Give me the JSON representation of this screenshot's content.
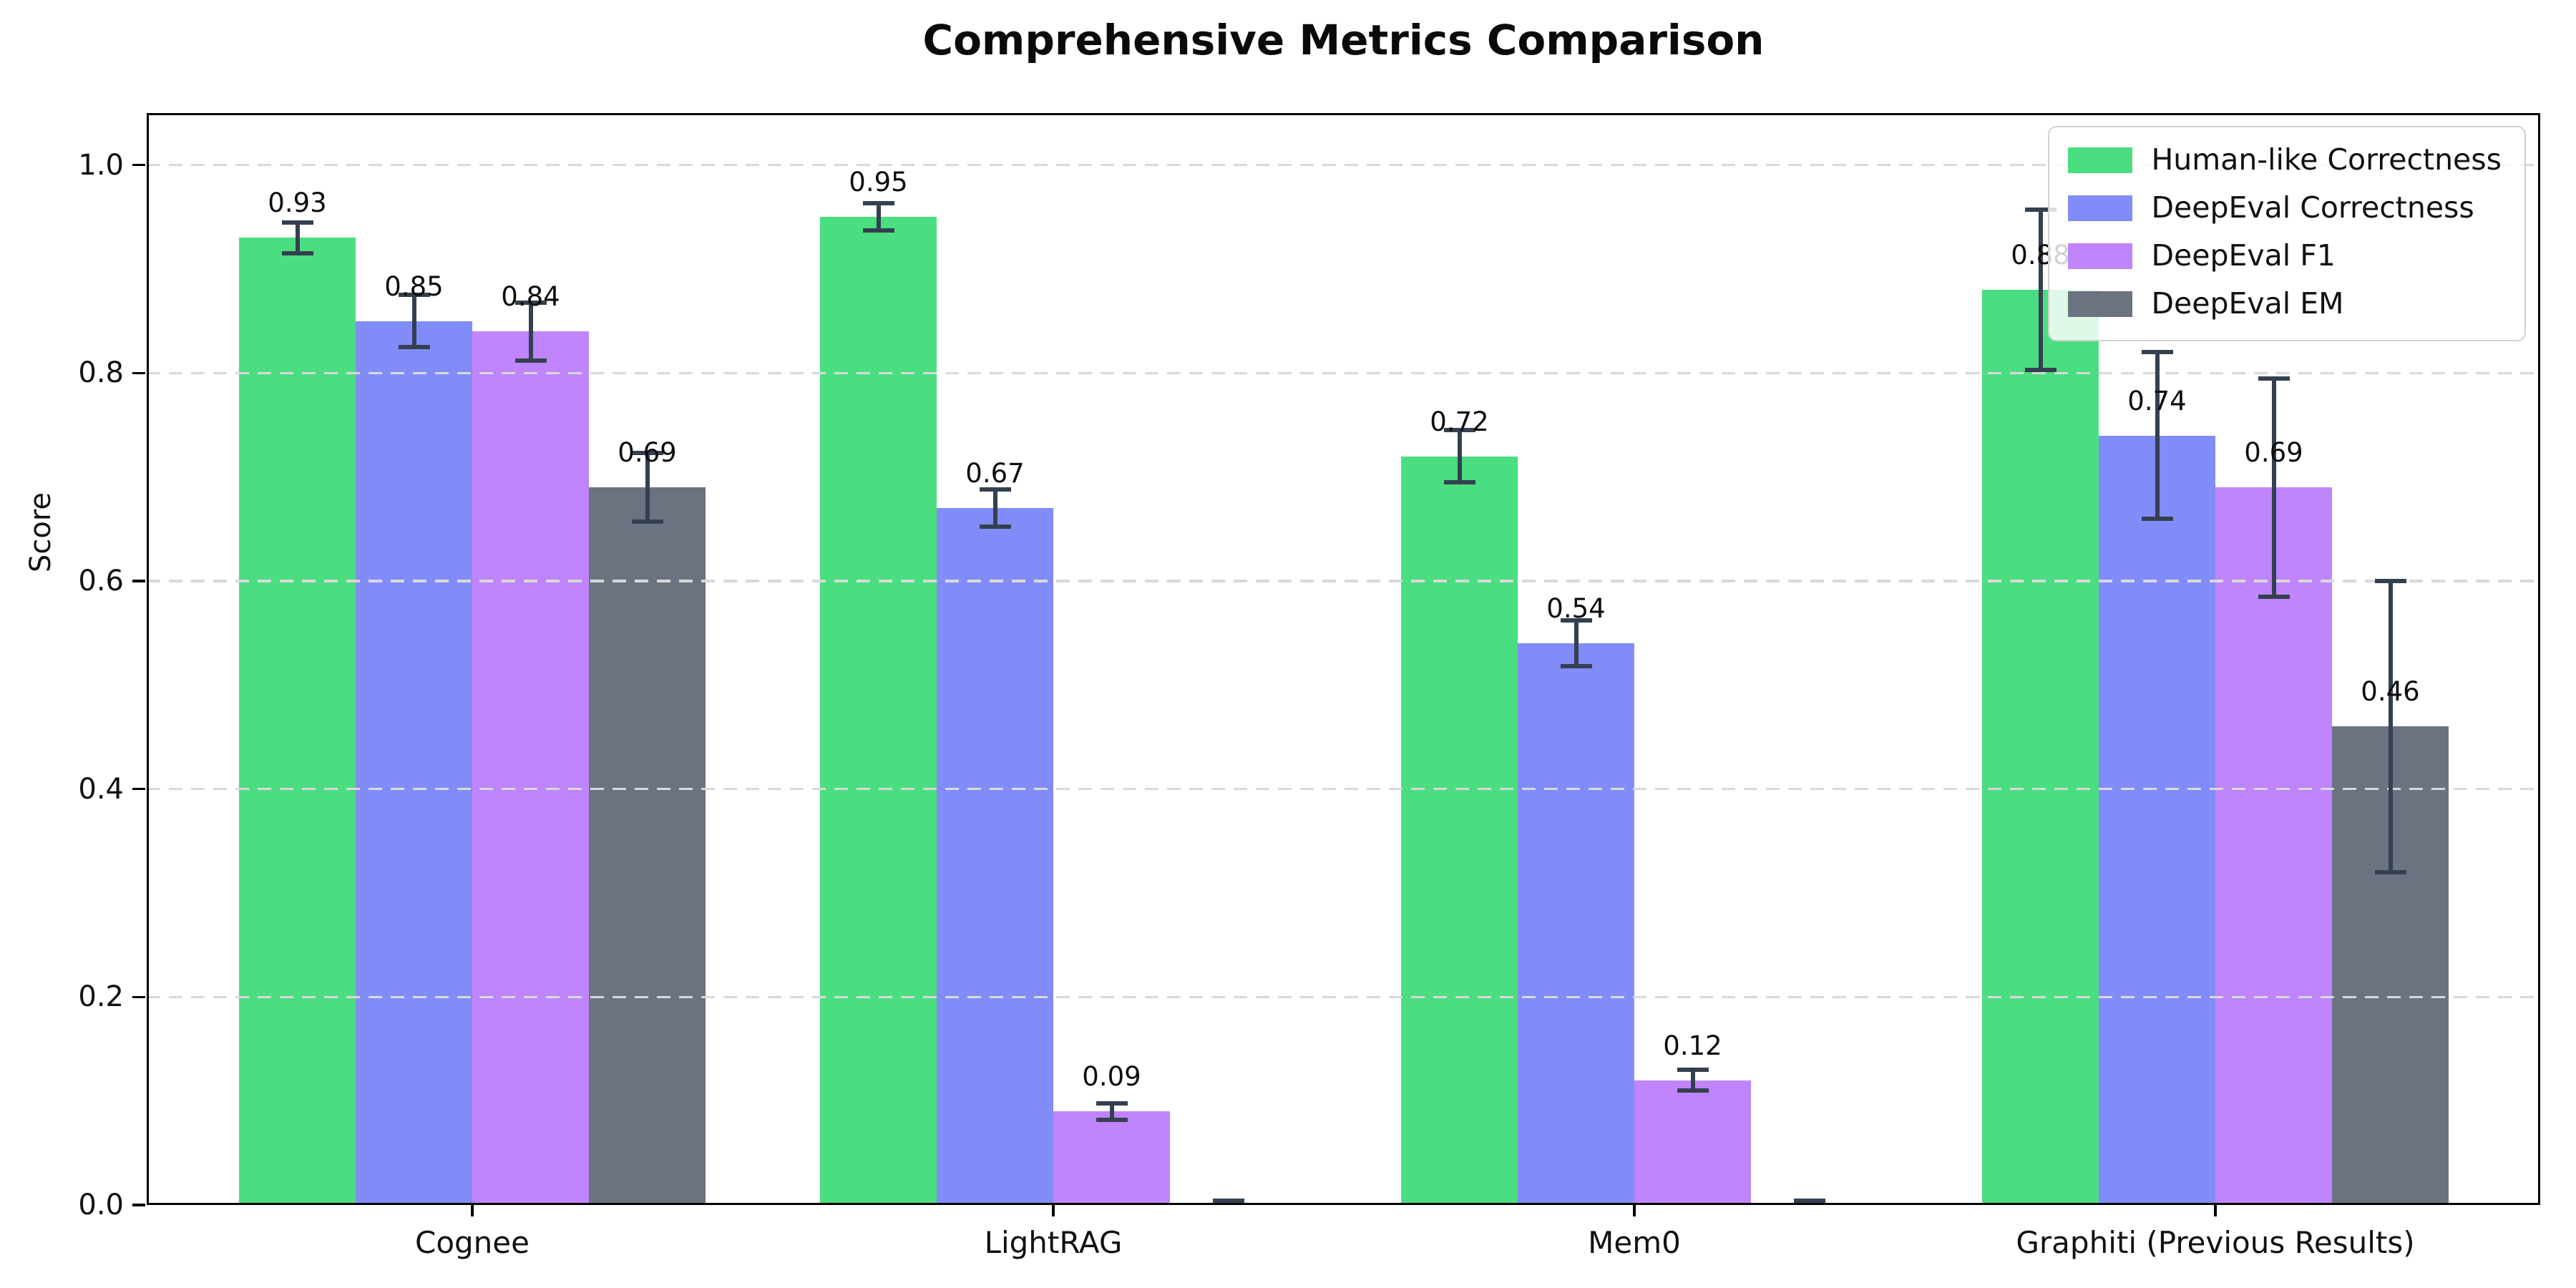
{
  "chart_data": {
    "type": "bar",
    "title": "Comprehensive Metrics Comparison",
    "ylabel": "Score",
    "xlabel": "",
    "categories": [
      "Cognee",
      "LightRAG",
      "Mem0",
      "Graphiti (Previous Results)"
    ],
    "series": [
      {
        "name": "Human-like Correctness",
        "color": "#4ade80",
        "values": [
          0.93,
          0.95,
          0.72,
          0.88
        ],
        "errors": [
          0.015,
          0.013,
          0.025,
          0.077
        ]
      },
      {
        "name": "DeepEval Correctness",
        "color": "#818cf8",
        "values": [
          0.85,
          0.67,
          0.54,
          0.74
        ],
        "errors": [
          0.025,
          0.018,
          0.022,
          0.08
        ]
      },
      {
        "name": "DeepEval F1",
        "color": "#c084fc",
        "values": [
          0.84,
          0.09,
          0.12,
          0.69
        ],
        "errors": [
          0.028,
          0.008,
          0.01,
          0.105
        ]
      },
      {
        "name": "DeepEval EM",
        "color": "#6b7280",
        "values": [
          0.69,
          0.0,
          0.0,
          0.46
        ],
        "errors": [
          0.033,
          0.004,
          0.004,
          0.14
        ]
      }
    ],
    "ylim": [
      0,
      1.05
    ],
    "yticks": [
      "0.0",
      "0.2",
      "0.4",
      "0.6",
      "0.8",
      "1.0"
    ],
    "grid": "horizontal dashed, drawn over bars",
    "grid_color": "#d9d9d9",
    "error_bar_color": "#344050",
    "legend_position": "upper right",
    "bar_label_format": "0.00",
    "unlabeled_bars_note": "EM bars for LightRAG and Mem0 are 0.00 and carry no value label"
  }
}
